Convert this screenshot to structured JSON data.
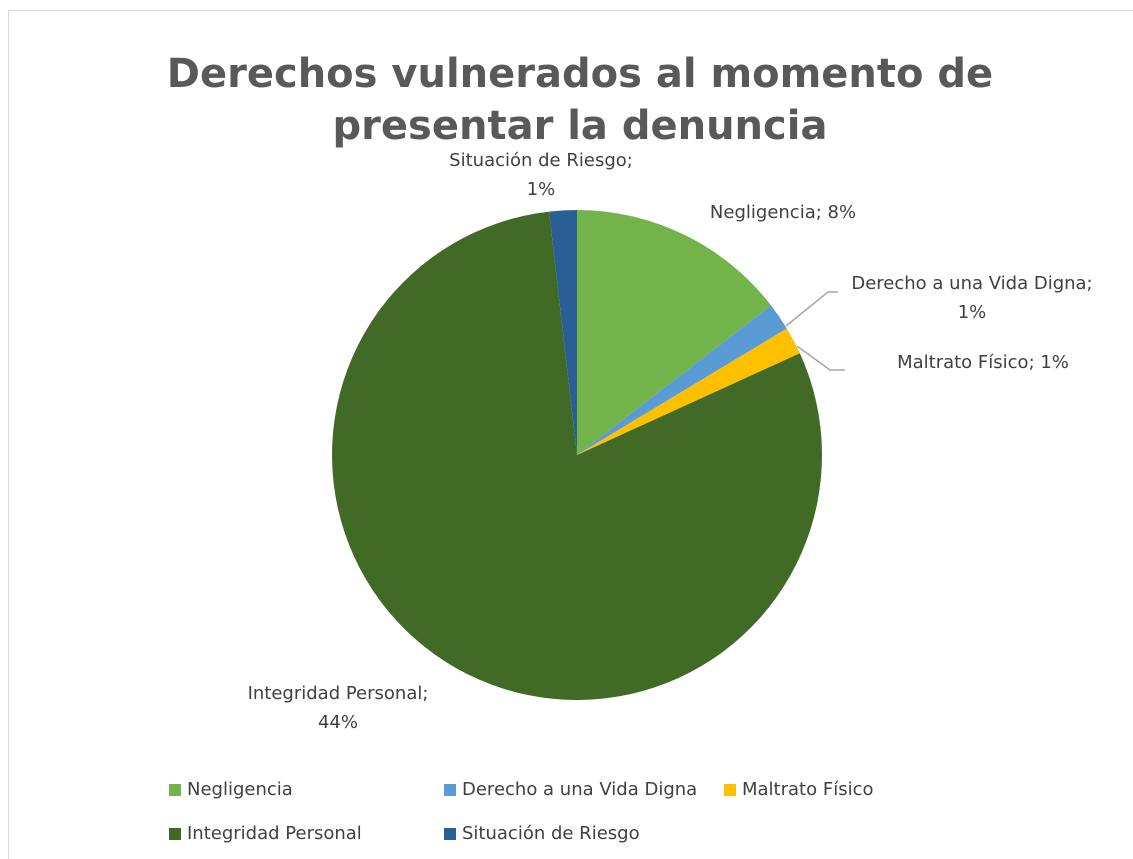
{
  "chart_data": {
    "type": "pie",
    "title": "Derechos vulnerados al momento de presentar la denuncia",
    "categories": [
      "Negligencia",
      "Derecho a una Vida Digna",
      "Maltrato Físico",
      "Integridad Personal",
      "Situación de Riesgo"
    ],
    "values": [
      8,
      1,
      1,
      44,
      1
    ],
    "value_labels": [
      [
        "Negligencia; 8%"
      ],
      [
        "Derecho a una Vida Digna;",
        "1%"
      ],
      [
        "Maltrato Físico; 1%"
      ],
      [
        "Integridad Personal;",
        "44%"
      ],
      [
        "Situación de Riesgo;",
        "1%"
      ]
    ],
    "colors": [
      "#72b34a",
      "#5b9bd5",
      "#ffc000",
      "#416a26",
      "#2a5f95"
    ],
    "legend": "bottom"
  }
}
